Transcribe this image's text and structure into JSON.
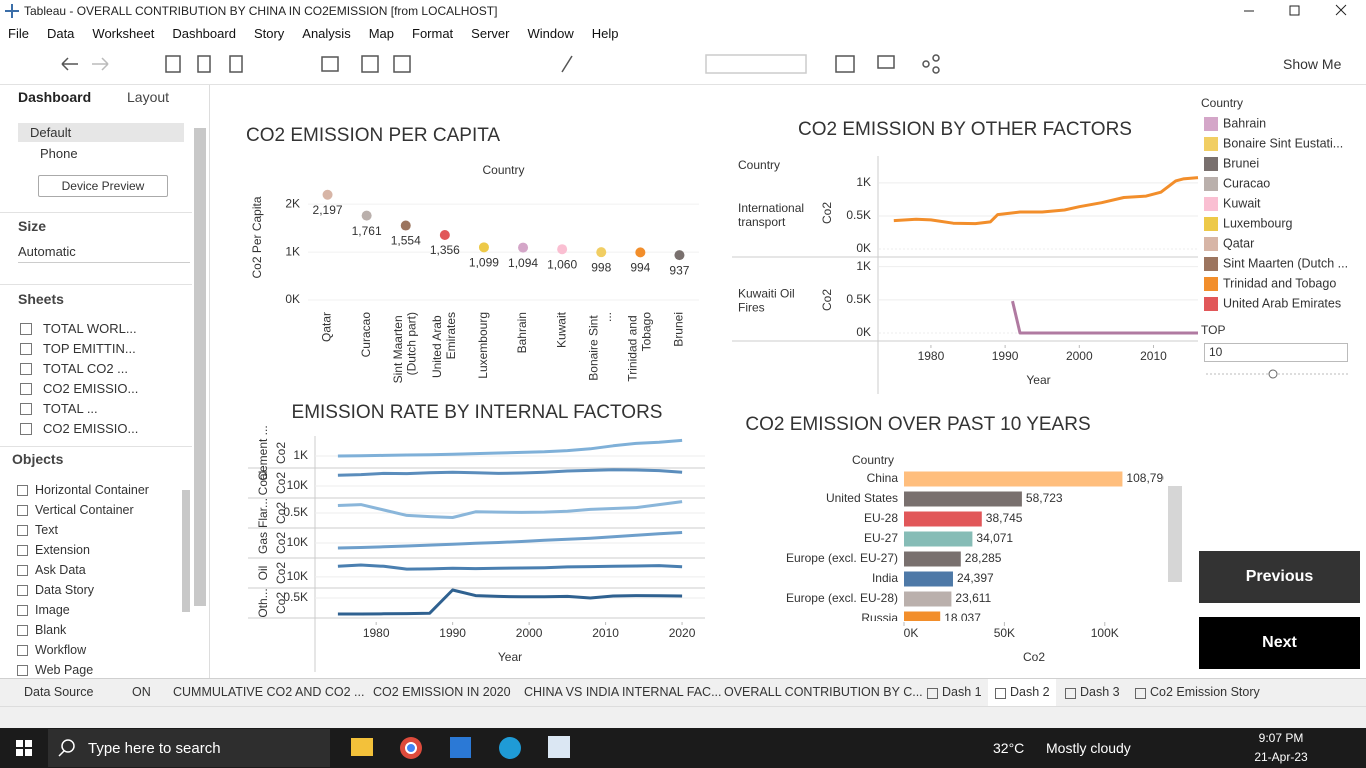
{
  "window": {
    "title": "Tableau - OVERALL CONTRIBUTION BY CHINA IN CO2EMISSION [from LOCALHOST]"
  },
  "menu": [
    "File",
    "Data",
    "Worksheet",
    "Dashboard",
    "Story",
    "Analysis",
    "Map",
    "Format",
    "Server",
    "Window",
    "Help"
  ],
  "toolbar": {
    "show_me": "Show Me"
  },
  "sidebar": {
    "tabs": [
      "Dashboard",
      "Layout"
    ],
    "devices": [
      "Default",
      "Phone"
    ],
    "device_preview": "Device Preview",
    "size_heading": "Size",
    "size_value": "Automatic",
    "sheets_heading": "Sheets",
    "sheets": [
      "TOTAL WORL...",
      "TOP EMITTIN...",
      "TOTAL CO2 ...",
      "CO2 EMISSIO...",
      "TOTAL ...",
      "CO2 EMISSIO..."
    ],
    "objects_heading": "Objects",
    "objects": [
      "Horizontal Container",
      "Vertical Container",
      "Text",
      "Extension",
      "Ask Data",
      "Data Story",
      "Image",
      "Blank",
      "Workflow",
      "Web Page"
    ]
  },
  "charts": [
    {
      "type": "dot",
      "title": "CO2 EMISSION PER CAPITA",
      "header": "Country",
      "y_label": "Co2 Per Capita",
      "categories": [
        "Qatar",
        "Curacao",
        "Sint Maarten (Dutch part)",
        "United Arab Emirates",
        "Luxembourg",
        "Bahrain",
        "Kuwait",
        "Bonaire Sint ...",
        "Trinidad and Tobago",
        "Brunei"
      ],
      "values": [
        2197,
        1761,
        1554,
        1356,
        1099,
        1094,
        1060,
        998,
        994,
        937
      ],
      "value_labels": [
        "2,197",
        "1,761",
        "1,554",
        "1,356",
        "1,099",
        "1,094",
        "1,060",
        "998",
        "994",
        "937"
      ],
      "colors": [
        "#d7b5a6",
        "#bab0ac",
        "#9c755f",
        "#e15759",
        "#edc948",
        "#d4a6c8",
        "#fabfd2",
        "#f1ce63",
        "#f28e2b",
        "#79706e"
      ],
      "ylim": [
        0,
        2400
      ],
      "yticks": [
        {
          "value": 0,
          "label": "0K"
        },
        {
          "value": 1000,
          "label": "1K"
        },
        {
          "value": 2000,
          "label": "2K"
        }
      ]
    },
    {
      "type": "line_panels",
      "title": "CO2 EMISSION BY OTHER FACTORS",
      "header": "Country",
      "x_label": "Year",
      "y_label": "Co2",
      "xlim": [
        1973,
        2016
      ],
      "xticks": [
        1980,
        1990,
        2000,
        2010
      ],
      "panels": [
        {
          "name": "International transport",
          "color": "#f28e2b",
          "ylim": [
            0,
            1150
          ],
          "yticks": [
            {
              "value": 0,
              "label": "0K"
            },
            {
              "value": 500,
              "label": "0.5K"
            },
            {
              "value": 1000,
              "label": "1K"
            }
          ],
          "x": [
            1975,
            1978,
            1980,
            1983,
            1986,
            1988,
            1989,
            1992,
            1995,
            1998,
            2000,
            2003,
            2006,
            2009,
            2011,
            2013,
            2014,
            2016
          ],
          "values": [
            430,
            450,
            440,
            390,
            385,
            410,
            520,
            560,
            560,
            590,
            640,
            700,
            780,
            800,
            860,
            1030,
            1060,
            1080
          ]
        },
        {
          "name": "Kuwaiti Oil Fires",
          "color": "#b07aa1",
          "ylim": [
            0,
            1100
          ],
          "yticks": [
            {
              "value": 0,
              "label": "0K"
            },
            {
              "value": 500,
              "label": "0.5K"
            },
            {
              "value": 1000,
              "label": "1K"
            }
          ],
          "x": [
            1991,
            1992,
            2000,
            2010,
            2016
          ],
          "values": [
            480,
            0,
            0,
            0,
            0
          ]
        }
      ]
    },
    {
      "type": "line_panels",
      "title": "EMISSION RATE BY INTERNAL FACTORS",
      "x_label": "Year",
      "y_label": "Co2",
      "xlim": [
        1972,
        2023
      ],
      "xticks": [
        1980,
        1990,
        2000,
        2010,
        2020
      ],
      "panels": [
        {
          "name": "Cement ...",
          "color": "#7fb0d8",
          "ylim": [
            0,
            2500
          ],
          "yticks": [
            {
              "value": 1000,
              "label": "1K"
            }
          ],
          "x": [
            1975,
            1978,
            1981,
            1984,
            1987,
            1990,
            1993,
            1996,
            1999,
            2002,
            2005,
            2008,
            2011,
            2014,
            2017,
            2020
          ],
          "values": [
            1000,
            1020,
            1050,
            1080,
            1100,
            1150,
            1200,
            1250,
            1300,
            1350,
            1450,
            1600,
            1850,
            2050,
            2150,
            2300
          ]
        },
        {
          "name": "Coal",
          "color": "#5b8dbc",
          "ylim": [
            0,
            25000
          ],
          "yticks": [
            {
              "value": 10000,
              "label": "10K"
            }
          ],
          "x": [
            1975,
            1978,
            1981,
            1984,
            1987,
            1990,
            1993,
            1996,
            1999,
            2002,
            2005,
            2008,
            2011,
            2014,
            2017,
            2020
          ],
          "values": [
            19000,
            19500,
            20500,
            20300,
            21000,
            21500,
            21000,
            20500,
            20800,
            21500,
            22500,
            23000,
            23500,
            23300,
            22800,
            21500
          ]
        },
        {
          "name": "Flar...",
          "color": "#8ab6da",
          "ylim": [
            0,
            1000
          ],
          "yticks": [
            {
              "value": 500,
              "label": "0.5K"
            }
          ],
          "x": [
            1975,
            1978,
            1981,
            1984,
            1987,
            1990,
            1993,
            1996,
            1999,
            2002,
            2005,
            2008,
            2011,
            2014,
            2017,
            2020
          ],
          "values": [
            750,
            780,
            600,
            420,
            380,
            350,
            540,
            530,
            520,
            530,
            560,
            620,
            650,
            680,
            780,
            880
          ]
        },
        {
          "name": "Gas",
          "color": "#6e9fcb",
          "ylim": [
            0,
            20000
          ],
          "yticks": [
            {
              "value": 10000,
              "label": "10K"
            }
          ],
          "x": [
            1975,
            1978,
            1981,
            1984,
            1987,
            1990,
            1993,
            1996,
            1999,
            2002,
            2005,
            2008,
            2011,
            2014,
            2017,
            2020
          ],
          "values": [
            6700,
            7000,
            7500,
            8000,
            8600,
            9200,
            9800,
            10300,
            11000,
            11800,
            12500,
            13200,
            14200,
            15200,
            16200,
            17000
          ]
        },
        {
          "name": "Oil",
          "color": "#4a7fb0",
          "ylim": [
            0,
            27000
          ],
          "yticks": [
            {
              "value": 10000,
              "label": "10K"
            }
          ],
          "x": [
            1975,
            1978,
            1981,
            1984,
            1987,
            1990,
            1993,
            1996,
            1999,
            2002,
            2005,
            2008,
            2011,
            2014,
            2017,
            2020
          ],
          "values": [
            19500,
            20700,
            19500,
            17000,
            17200,
            17800,
            17500,
            17700,
            18000,
            18300,
            19000,
            19300,
            19500,
            19800,
            20200,
            19200
          ]
        },
        {
          "name": "Oth...",
          "color": "#2f6190",
          "ylim": [
            0,
            750
          ],
          "yticks": [
            {
              "value": 500,
              "label": "0.5K"
            }
          ],
          "x": [
            1975,
            1978,
            1981,
            1984,
            1987,
            1990,
            1993,
            1996,
            1999,
            2002,
            2005,
            2008,
            2011,
            2014,
            2017,
            2020
          ],
          "values": [
            100,
            100,
            105,
            110,
            120,
            700,
            560,
            540,
            530,
            530,
            540,
            500,
            550,
            560,
            555,
            550
          ]
        }
      ]
    },
    {
      "type": "hbar",
      "title": "CO2 EMISSION OVER PAST 10 YEARS",
      "header": "Country",
      "x_label": "Co2",
      "categories": [
        "China",
        "United States",
        "EU-28",
        "EU-27",
        "Europe (excl. EU-27)",
        "India",
        "Europe (excl. EU-28)",
        "Russia"
      ],
      "values": [
        108796,
        58723,
        38745,
        34071,
        28285,
        24397,
        23611,
        18037
      ],
      "value_labels": [
        "108,796",
        "58,723",
        "38,745",
        "34,071",
        "28,285",
        "24,397",
        "23,611",
        "18,037"
      ],
      "colors": [
        "#ffbe7d",
        "#79706e",
        "#e15759",
        "#86bcb6",
        "#79706e",
        "#4e79a7",
        "#bab0ac",
        "#f28e2b"
      ],
      "xlim": [
        0,
        130000
      ],
      "xticks": [
        {
          "value": 0,
          "label": "0K"
        },
        {
          "value": 50000,
          "label": "50K"
        },
        {
          "value": 100000,
          "label": "100K"
        }
      ]
    }
  ],
  "legend": {
    "title": "Country",
    "items": [
      {
        "name": "Bahrain",
        "color": "#d4a6c8"
      },
      {
        "name": "Bonaire Sint Eustati...",
        "color": "#f1ce63"
      },
      {
        "name": "Brunei",
        "color": "#79706e"
      },
      {
        "name": "Curacao",
        "color": "#bab0ac"
      },
      {
        "name": "Kuwait",
        "color": "#fabfd2"
      },
      {
        "name": "Luxembourg",
        "color": "#edc948"
      },
      {
        "name": "Qatar",
        "color": "#d7b5a6"
      },
      {
        "name": "Sint Maarten (Dutch ...",
        "color": "#9c755f"
      },
      {
        "name": "Trinidad and Tobago",
        "color": "#f28e2b"
      },
      {
        "name": "United Arab Emirates",
        "color": "#e15759"
      }
    ]
  },
  "top_filter": {
    "label": "TOP",
    "value": "10"
  },
  "buttons": [
    "Previous",
    "Next"
  ],
  "tabs": [
    "Data Source",
    "ON",
    "CUMMULATIVE CO2 AND CO2 ...",
    "CO2 EMISSION IN 2020",
    "CHINA VS INDIA INTERNAL FAC...",
    "OVERALL CONTRIBUTION BY C...",
    "Dash 1",
    "Dash 2",
    "Dash 3",
    "Co2 Emission Story"
  ],
  "taskbar": {
    "search": "Type here to search",
    "temperature": "32°C",
    "weather": "Mostly cloudy",
    "time": "9:07 PM",
    "date": "21-Apr-23"
  }
}
